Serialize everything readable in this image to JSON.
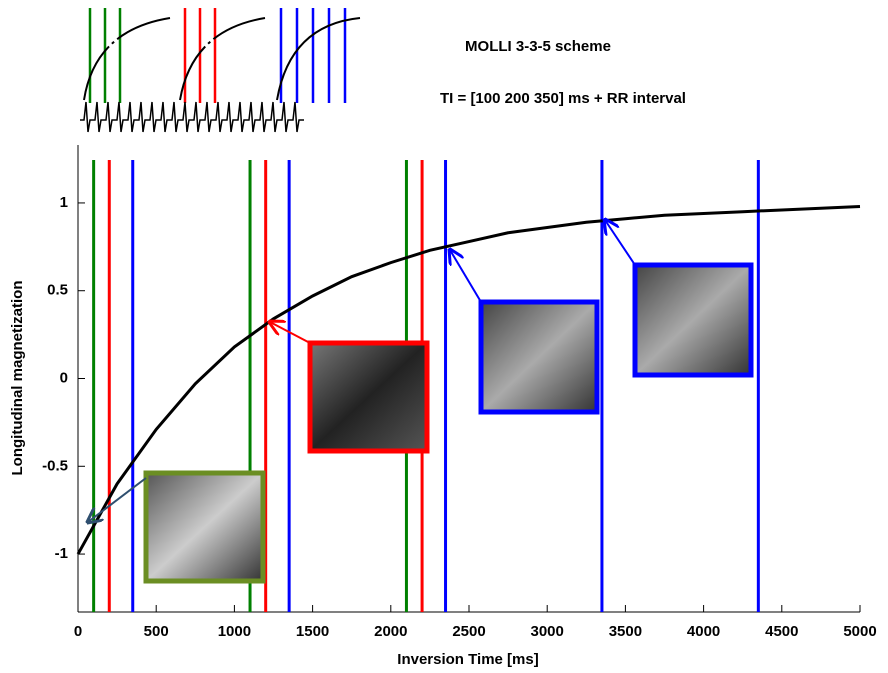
{
  "chart_data": {
    "type": "line",
    "title": "MOLLI 3-3-5 scheme",
    "subtitle": "TI = [100 200 350] ms + RR interval",
    "x_label": "Inversion Time [ms]",
    "y_label": "Longitudinal magnetization",
    "x": [
      0,
      250,
      500,
      750,
      1000,
      1250,
      1500,
      1750,
      2000,
      2250,
      2500,
      2750,
      3000,
      3250,
      3500,
      3750,
      4000,
      4250,
      4500,
      4750,
      5000
    ],
    "series": [
      {
        "color": "#000000",
        "values": [
          -1,
          -0.6,
          -0.29,
          -0.03,
          0.18,
          0.34,
          0.47,
          0.58,
          0.66,
          0.73,
          0.78,
          0.83,
          0.86,
          0.89,
          0.91,
          0.93,
          0.94,
          0.95,
          0.96,
          0.97,
          0.98
        ]
      }
    ],
    "vlines": [
      {
        "color": "#008000",
        "x": [
          100,
          1100,
          2100
        ]
      },
      {
        "color": "#ff0000",
        "x": [
          200,
          1200,
          2200
        ]
      },
      {
        "color": "#0000ff",
        "x": [
          350,
          1350,
          2350,
          3350,
          4350
        ]
      }
    ],
    "xlim": [
      0,
      5000
    ],
    "xticks": [
      0,
      500,
      1000,
      1500,
      2000,
      2500,
      3000,
      3500,
      4000,
      4500,
      5000
    ],
    "ylim": [
      -1.33,
      1.33
    ],
    "yticks": [
      -1,
      -0.5,
      0,
      0.5,
      1
    ]
  }
}
